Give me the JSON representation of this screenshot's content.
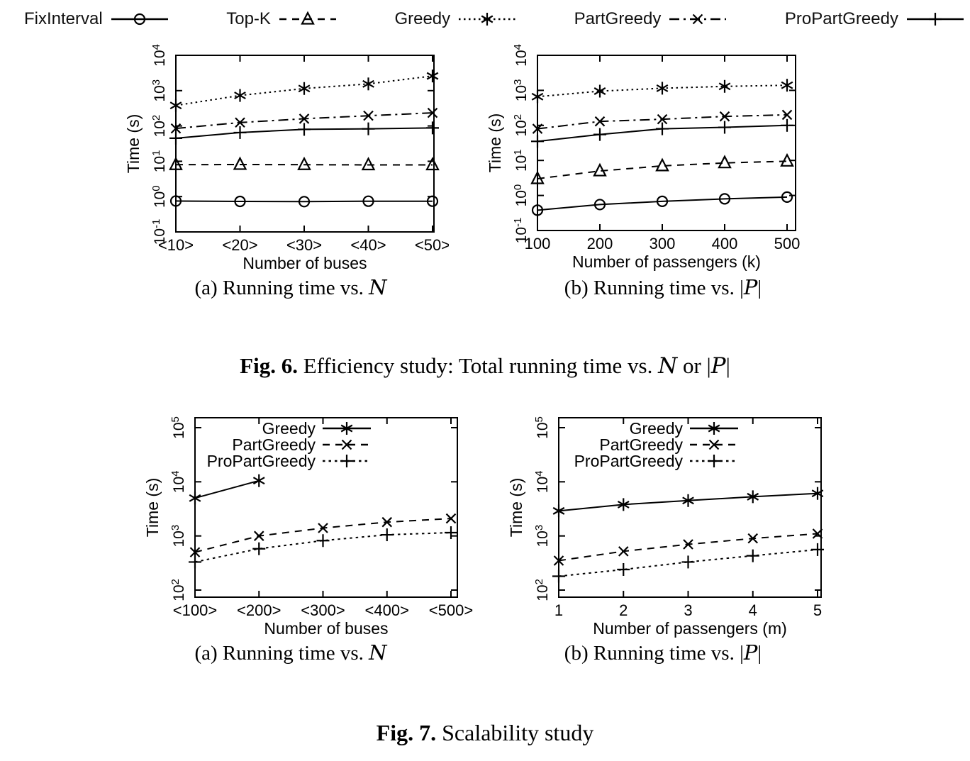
{
  "page": {
    "background": "#ffffff",
    "ink": "#000000"
  },
  "legend": {
    "items": [
      {
        "label": "FixInterval",
        "marker": "circle",
        "line": "solid"
      },
      {
        "label": "Top-K",
        "marker": "triangle",
        "line": "dashed"
      },
      {
        "label": "Greedy",
        "marker": "asterisk",
        "line": "dotted"
      },
      {
        "label": "PartGreedy",
        "marker": "x",
        "line": "dashdot"
      },
      {
        "label": "ProPartGreedy",
        "marker": "plus",
        "line": "solid"
      }
    ]
  },
  "chart_data": [
    {
      "id": "fig6a",
      "type": "line",
      "title": "",
      "xlabel": "Number of buses",
      "ylabel": "Time (s)",
      "x_categories": [
        "<10>",
        "<20>",
        "<30>",
        "<40>",
        "<50>"
      ],
      "y_scale": "log",
      "ylim_exp": [
        -1,
        4
      ],
      "grid": false,
      "legend_position": "none",
      "series": [
        {
          "name": "FixInterval",
          "marker": "circle",
          "line": "solid",
          "values": [
            0.75,
            0.73,
            0.72,
            0.74,
            0.74
          ]
        },
        {
          "name": "Top-K",
          "marker": "triangle",
          "line": "dashed",
          "values": [
            8,
            8.1,
            8,
            7.9,
            7.9
          ]
        },
        {
          "name": "Greedy",
          "marker": "asterisk",
          "line": "dotted",
          "values": [
            380,
            730,
            1150,
            1550,
            2600
          ]
        },
        {
          "name": "PartGreedy",
          "marker": "x",
          "line": "dashdot",
          "values": [
            85,
            125,
            160,
            195,
            235
          ]
        },
        {
          "name": "ProPartGreedy",
          "marker": "plus",
          "line": "solid",
          "values": [
            45,
            65,
            80,
            83,
            88
          ]
        }
      ]
    },
    {
      "id": "fig6b",
      "type": "line",
      "title": "",
      "xlabel": "Number of passengers (k)",
      "ylabel": "Time (s)",
      "x_categories": [
        "100",
        "200",
        "300",
        "400",
        "500"
      ],
      "y_scale": "log",
      "ylim_exp": [
        -1,
        4
      ],
      "grid": false,
      "legend_position": "none",
      "series": [
        {
          "name": "FixInterval",
          "marker": "circle",
          "line": "solid",
          "values": [
            0.38,
            0.55,
            0.68,
            0.8,
            0.9
          ]
        },
        {
          "name": "Top-K",
          "marker": "triangle",
          "line": "dashed",
          "values": [
            3,
            5,
            7,
            8.5,
            9.5
          ]
        },
        {
          "name": "Greedy",
          "marker": "asterisk",
          "line": "dotted",
          "values": [
            660,
            950,
            1150,
            1300,
            1400
          ]
        },
        {
          "name": "PartGreedy",
          "marker": "x",
          "line": "dashdot",
          "values": [
            80,
            130,
            150,
            180,
            200
          ]
        },
        {
          "name": "ProPartGreedy",
          "marker": "plus",
          "line": "solid",
          "values": [
            35,
            55,
            80,
            88,
            100
          ]
        }
      ]
    },
    {
      "id": "fig7a",
      "type": "line",
      "title": "",
      "xlabel": "Number of buses",
      "ylabel": "Time (s)",
      "x_categories": [
        "<100>",
        "<200>",
        "<300>",
        "<400>",
        "<500>"
      ],
      "y_scale": "log",
      "ylim_exp": [
        2,
        5
      ],
      "grid": false,
      "legend_position": "inside-top",
      "series": [
        {
          "name": "Greedy",
          "marker": "asterisk",
          "line": "solid",
          "values": [
            5000,
            10500,
            null,
            null,
            null
          ]
        },
        {
          "name": "PartGreedy",
          "marker": "x",
          "line": "dashed",
          "values": [
            500,
            1000,
            1400,
            1800,
            2100
          ]
        },
        {
          "name": "ProPartGreedy",
          "marker": "plus",
          "line": "finedot",
          "values": [
            330,
            580,
            820,
            1050,
            1150
          ]
        }
      ]
    },
    {
      "id": "fig7b",
      "type": "line",
      "title": "",
      "xlabel": "Number of passengers (m)",
      "ylabel": "Time (s)",
      "x_categories": [
        "1",
        "2",
        "3",
        "4",
        "5"
      ],
      "y_scale": "log",
      "ylim_exp": [
        2,
        5
      ],
      "grid": false,
      "legend_position": "inside-top",
      "series": [
        {
          "name": "Greedy",
          "marker": "asterisk",
          "line": "solid",
          "values": [
            2900,
            3800,
            4500,
            5300,
            6100
          ]
        },
        {
          "name": "PartGreedy",
          "marker": "x",
          "line": "dashed",
          "values": [
            350,
            520,
            700,
            900,
            1100
          ]
        },
        {
          "name": "ProPartGreedy",
          "marker": "plus",
          "line": "finedot",
          "values": [
            180,
            240,
            330,
            430,
            560
          ]
        }
      ]
    }
  ],
  "captions": {
    "fig6a": {
      "pre": "(a) Running time vs. ",
      "math": "N",
      "post": ""
    },
    "fig6b": {
      "pre": "(b) Running time vs. |",
      "math": "P",
      "post": "|"
    },
    "fig6": {
      "bold": "Fig. 6.",
      "s1": " Efficiency study: Total running time vs. ",
      "m1": "N",
      "s2": " or |",
      "m2": "P",
      "s3": "|"
    },
    "fig7a": {
      "pre": "(a) Running time vs. ",
      "math": "N",
      "post": ""
    },
    "fig7b": {
      "pre": "(b) Running time vs. |",
      "math": "P",
      "post": "|"
    },
    "fig7": {
      "bold": "Fig. 7.",
      "s1": " Scalability study"
    }
  }
}
